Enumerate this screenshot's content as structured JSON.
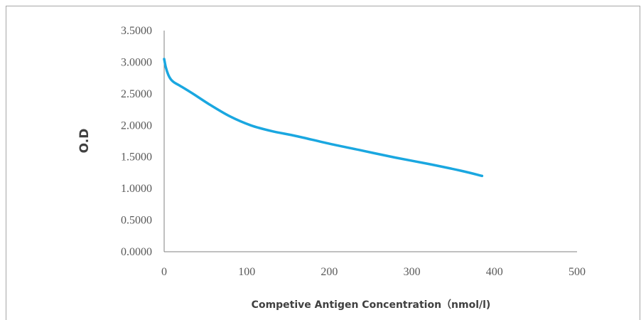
{
  "chart_data": {
    "type": "line",
    "title": "",
    "xlabel": "Competive Antigen Concentration（nmol/l)",
    "ylabel": "O.D",
    "xlim": [
      0,
      500
    ],
    "ylim": [
      0,
      3.5
    ],
    "x_ticks": [
      0,
      100,
      200,
      300,
      400,
      500
    ],
    "y_ticks": [
      0,
      0.5,
      1.0,
      1.5,
      2.0,
      2.5,
      3.0,
      3.5
    ],
    "y_tick_labels": [
      "0.0000",
      "0.5000",
      "1.0000",
      "1.5000",
      "2.0000",
      "2.5000",
      "3.0000",
      "3.5000"
    ],
    "x_tick_labels": [
      "0",
      "100",
      "200",
      "300",
      "400",
      "500"
    ],
    "grid": false,
    "legend": "none",
    "series": [
      {
        "color": "#1aa7e0",
        "x": [
          0,
          2,
          5,
          8,
          12,
          20,
          35,
          55,
          80,
          105,
          130,
          160,
          200,
          240,
          280,
          320,
          360,
          385
        ],
        "y": [
          3.05,
          2.92,
          2.8,
          2.73,
          2.68,
          2.62,
          2.5,
          2.33,
          2.14,
          2.0,
          1.91,
          1.83,
          1.71,
          1.6,
          1.49,
          1.39,
          1.28,
          1.2
        ]
      }
    ]
  }
}
